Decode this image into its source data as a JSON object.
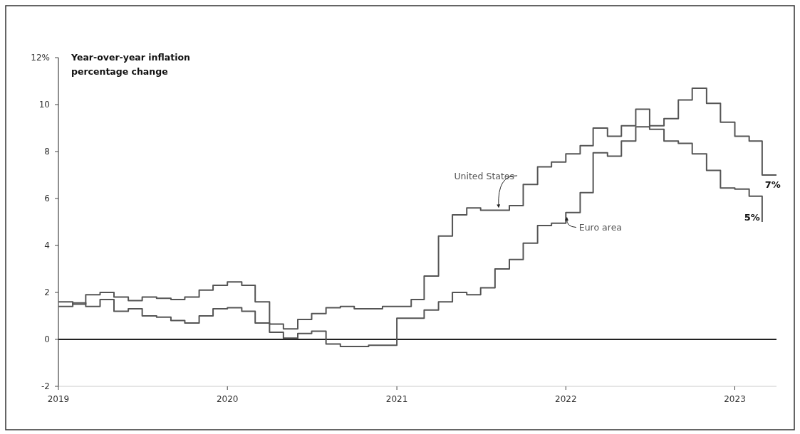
{
  "chart_data": {
    "type": "step",
    "ylabel": "Year-over-year inflation percentage change",
    "xlim": [
      "2019-01",
      "2023-04"
    ],
    "xticks": [
      {
        "value": "2019-01",
        "label": "2019"
      },
      {
        "value": "2020-01",
        "label": "2020"
      },
      {
        "value": "2021-01",
        "label": "2021"
      },
      {
        "value": "2022-01",
        "label": "2022"
      },
      {
        "value": "2023-01",
        "label": "2023"
      }
    ],
    "ylim": [
      -2,
      12
    ],
    "yticks": [
      -2,
      0,
      2,
      4,
      6,
      8,
      10,
      {
        "value": 12,
        "label": "12%"
      }
    ],
    "grid": false,
    "legend": false,
    "ref_lines": [
      {
        "axis": "y",
        "value": 0,
        "color": "#222222"
      }
    ],
    "series": [
      {
        "name": "United States",
        "color": "#555555",
        "x": [
          "2019-01",
          "2019-02",
          "2019-03",
          "2019-04",
          "2019-05",
          "2019-06",
          "2019-07",
          "2019-08",
          "2019-09",
          "2019-10",
          "2019-11",
          "2019-12",
          "2020-01",
          "2020-02",
          "2020-03",
          "2020-04",
          "2020-05",
          "2020-06",
          "2020-07",
          "2020-08",
          "2020-09",
          "2020-10",
          "2020-11",
          "2020-12",
          "2021-01",
          "2021-02",
          "2021-03",
          "2021-04",
          "2021-05",
          "2021-06",
          "2021-07",
          "2021-08",
          "2021-09",
          "2021-10",
          "2021-11",
          "2021-12",
          "2022-01",
          "2022-02",
          "2022-03",
          "2022-04",
          "2022-05",
          "2022-06",
          "2022-07",
          "2022-08",
          "2022-09",
          "2022-10",
          "2022-11",
          "2022-12",
          "2023-01",
          "2023-02",
          "2023-03"
        ],
        "values": [
          1.6,
          1.5,
          1.9,
          2.0,
          1.8,
          1.65,
          1.8,
          1.75,
          1.7,
          1.8,
          2.1,
          2.3,
          2.45,
          2.3,
          1.6,
          0.65,
          0.45,
          0.85,
          1.1,
          1.35,
          1.4,
          1.3,
          1.3,
          1.4,
          1.4,
          1.7,
          2.7,
          4.4,
          5.3,
          5.6,
          5.5,
          5.5,
          5.7,
          6.6,
          7.35,
          7.55,
          7.9,
          8.25,
          9.0,
          8.65,
          9.1,
          9.8,
          8.95,
          8.45,
          8.35,
          7.9,
          7.2,
          6.45,
          6.4,
          6.1,
          5.0
        ],
        "value_labels": [
          null,
          null,
          null,
          null,
          null,
          null,
          null,
          null,
          null,
          null,
          null,
          null,
          null,
          null,
          null,
          null,
          null,
          null,
          null,
          null,
          null,
          null,
          null,
          null,
          null,
          null,
          null,
          null,
          null,
          null,
          null,
          null,
          null,
          null,
          null,
          null,
          null,
          null,
          null,
          null,
          null,
          null,
          null,
          null,
          null,
          null,
          null,
          null,
          null,
          null,
          "5%"
        ]
      },
      {
        "name": "Euro area",
        "color": "#555555",
        "x": [
          "2019-01",
          "2019-02",
          "2019-03",
          "2019-04",
          "2019-05",
          "2019-06",
          "2019-07",
          "2019-08",
          "2019-09",
          "2019-10",
          "2019-11",
          "2019-12",
          "2020-01",
          "2020-02",
          "2020-03",
          "2020-04",
          "2020-05",
          "2020-06",
          "2020-07",
          "2020-08",
          "2020-09",
          "2020-10",
          "2020-11",
          "2020-12",
          "2021-01",
          "2021-02",
          "2021-03",
          "2021-04",
          "2021-05",
          "2021-06",
          "2021-07",
          "2021-08",
          "2021-09",
          "2021-10",
          "2021-11",
          "2021-12",
          "2022-01",
          "2022-02",
          "2022-03",
          "2022-04",
          "2022-05",
          "2022-06",
          "2022-07",
          "2022-08",
          "2022-09",
          "2022-10",
          "2022-11",
          "2022-12",
          "2023-01",
          "2023-02",
          "2023-03",
          "2023-04"
        ],
        "values": [
          1.4,
          1.55,
          1.4,
          1.7,
          1.2,
          1.3,
          1.0,
          0.95,
          0.8,
          0.7,
          1.0,
          1.3,
          1.35,
          1.2,
          0.7,
          0.3,
          0.05,
          0.25,
          0.35,
          -0.2,
          -0.3,
          -0.3,
          -0.25,
          -0.25,
          0.9,
          0.9,
          1.25,
          1.6,
          2.0,
          1.9,
          2.2,
          3.0,
          3.4,
          4.1,
          4.85,
          4.95,
          5.4,
          6.25,
          7.95,
          7.8,
          8.45,
          9.05,
          9.1,
          9.4,
          10.2,
          10.7,
          10.05,
          9.25,
          8.65,
          8.45,
          7.0,
          7.0
        ],
        "value_labels": [
          null,
          null,
          null,
          null,
          null,
          null,
          null,
          null,
          null,
          null,
          null,
          null,
          null,
          null,
          null,
          null,
          null,
          null,
          null,
          null,
          null,
          null,
          null,
          null,
          null,
          null,
          null,
          null,
          null,
          null,
          null,
          null,
          null,
          null,
          null,
          null,
          null,
          null,
          null,
          null,
          null,
          null,
          null,
          null,
          null,
          null,
          null,
          null,
          null,
          null,
          "7%",
          null
        ]
      }
    ]
  }
}
